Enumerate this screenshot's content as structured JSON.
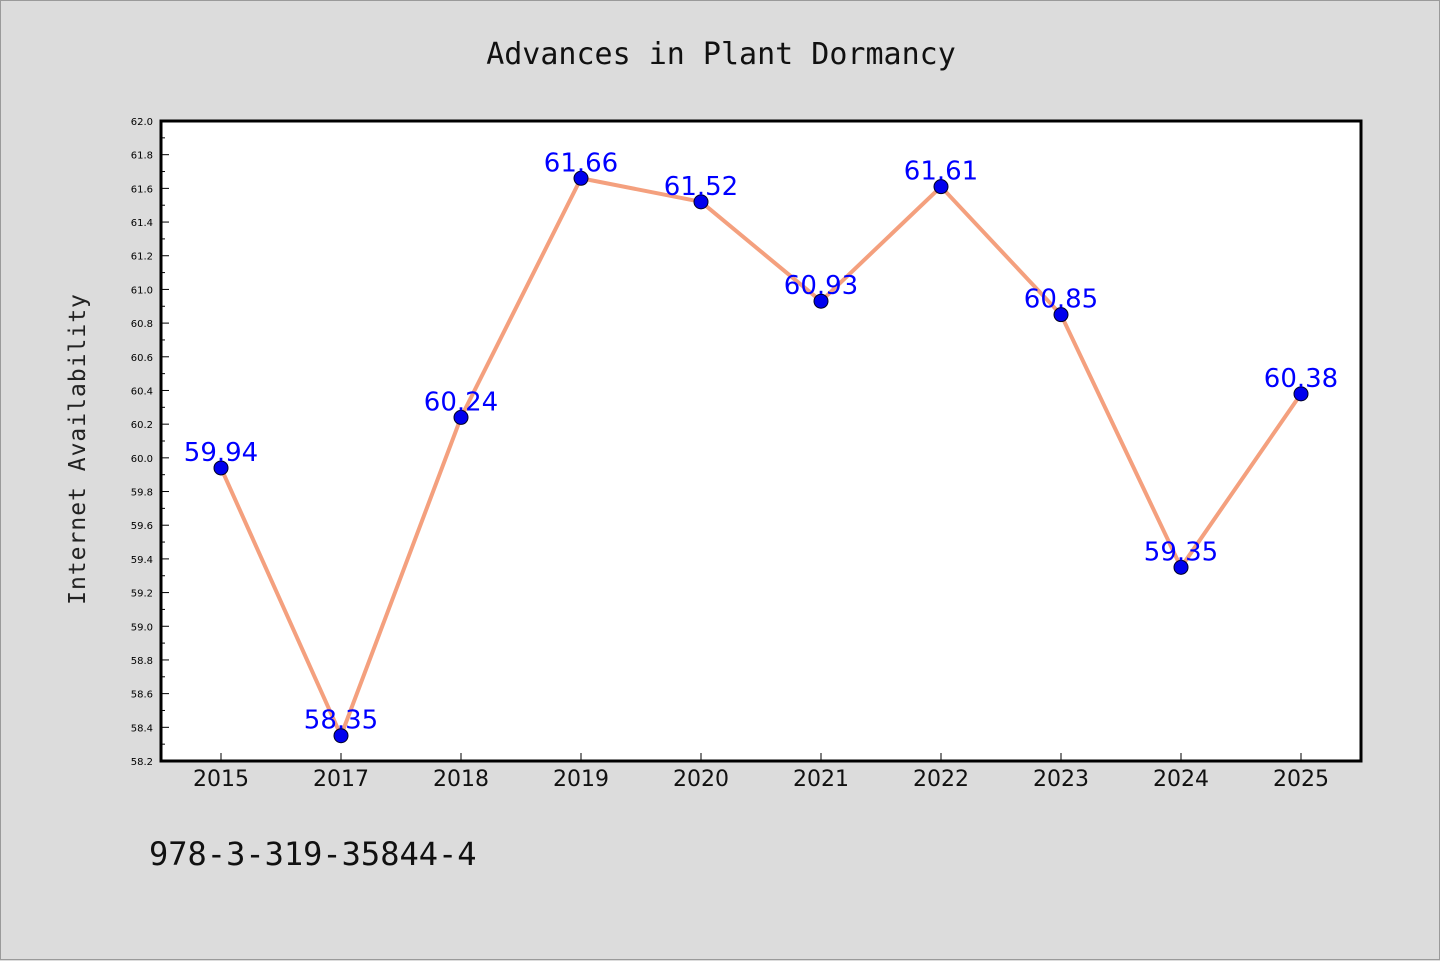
{
  "chart_data": {
    "type": "line",
    "title": "Advances in Plant Dormancy",
    "xlabel": "",
    "ylabel": "Internet Availability",
    "categories": [
      "2015",
      "2017",
      "2018",
      "2019",
      "2020",
      "2021",
      "2022",
      "2023",
      "2024",
      "2025"
    ],
    "values": [
      59.94,
      58.35,
      60.24,
      61.66,
      61.52,
      60.93,
      61.61,
      60.85,
      59.35,
      60.38
    ],
    "value_labels": [
      "59.94",
      "58.35",
      "60.24",
      "61.66",
      "61.52",
      "60.93",
      "61.61",
      "60.85",
      "59.35",
      "60.38"
    ],
    "ylim": [
      58.2,
      62.0
    ],
    "yticks": [
      "58.2",
      "58.4",
      "58.6",
      "58.8",
      "59.0",
      "59.2",
      "59.4",
      "59.6",
      "59.8",
      "60.0",
      "60.2",
      "60.4",
      "60.6",
      "60.8",
      "61.0",
      "61.2",
      "61.4",
      "61.6",
      "61.8",
      "62.0"
    ],
    "grid": false,
    "legend": "none",
    "line_color": "#f4a07e",
    "marker_color": "#0000ee",
    "label_color": "#0000ff"
  },
  "footnote": "978-3-319-35844-4",
  "colors": {
    "background": "#dcdcdc",
    "plot_background": "#ffffff",
    "axes": "#000000"
  }
}
